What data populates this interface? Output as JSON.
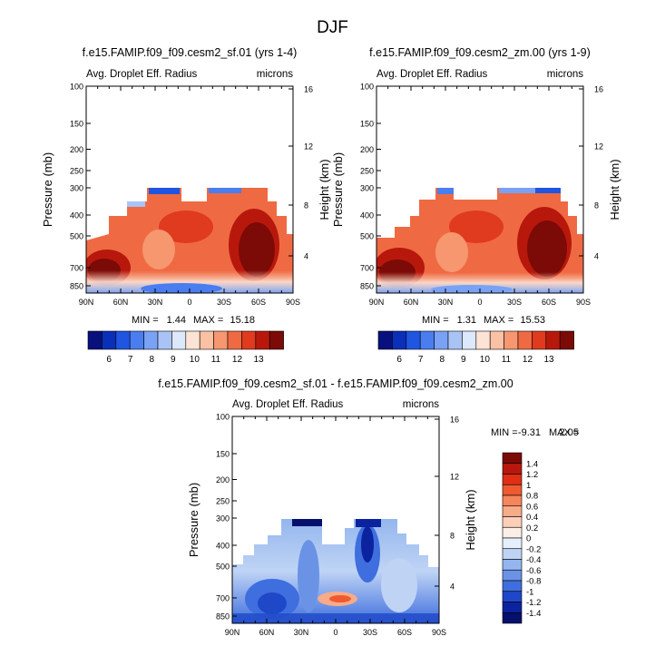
{
  "title": "DJF",
  "chart_data": [
    {
      "type": "heatmap",
      "id": "p1",
      "title": "f.e15.FAMIP.f09_f09.cesm2_sf.01 (yrs 1-4)",
      "subtitle_left": "Avg. Droplet Eff. Radius",
      "subtitle_right": "microns",
      "ylabel": "Pressure (mb)",
      "ylabel_right": "Height (km)",
      "x_ticks": [
        "90N",
        "60N",
        "30N",
        "0",
        "30S",
        "60S",
        "90S"
      ],
      "y_ticks": [
        "100",
        "150",
        "200",
        "250",
        "300",
        "400",
        "500",
        "700",
        "850"
      ],
      "y2_ticks": [
        "16",
        "12",
        "8",
        "4"
      ],
      "min_label": "MIN =",
      "min_value": "1.44",
      "max_label": "MAX =",
      "max_value": "15.18",
      "colorbar_labels": [
        "6",
        "7",
        "8",
        "9",
        "10",
        "11",
        "12",
        "13"
      ]
    },
    {
      "type": "heatmap",
      "id": "p2",
      "title": "f.e15.FAMIP.f09_f09.cesm2_zm.00 (yrs 1-9)",
      "subtitle_left": "Avg. Droplet Eff. Radius",
      "subtitle_right": "microns",
      "ylabel": "Pressure (mb)",
      "ylabel_right": "Height (km)",
      "x_ticks": [
        "90N",
        "60N",
        "30N",
        "0",
        "30S",
        "60S",
        "90S"
      ],
      "y_ticks": [
        "100",
        "150",
        "200",
        "250",
        "300",
        "400",
        "500",
        "700",
        "850"
      ],
      "y2_ticks": [
        "16",
        "12",
        "8",
        "4"
      ],
      "min_label": "MIN =",
      "min_value": "1.31",
      "max_label": "MAX =",
      "max_value": "15.53",
      "colorbar_labels": [
        "6",
        "7",
        "8",
        "9",
        "10",
        "11",
        "12",
        "13"
      ]
    },
    {
      "type": "heatmap",
      "id": "p3",
      "title": "f.e15.FAMIP.f09_f09.cesm2_sf.01 - f.e15.FAMIP.f09_f09.cesm2_zm.00",
      "subtitle_left": "Avg. Droplet Eff. Radius",
      "subtitle_right": "microns",
      "ylabel": "Pressure (mb)",
      "ylabel_right": "Height (km)",
      "x_ticks": [
        "90N",
        "60N",
        "30N",
        "0",
        "30S",
        "60S",
        "90S"
      ],
      "y_ticks": [
        "100",
        "150",
        "200",
        "250",
        "300",
        "400",
        "500",
        "700",
        "850"
      ],
      "y2_ticks": [
        "16",
        "12",
        "8",
        "4"
      ],
      "min_label": "MIN =",
      "min_value": "-9.31",
      "max_label": "MAX =",
      "max_value": "2.05",
      "colorbar_labels": [
        "1.4",
        "1.2",
        "1",
        "0.8",
        "0.6",
        "0.4",
        "0.2",
        "0",
        "-0.2",
        "-0.4",
        "-0.6",
        "-0.8",
        "-1",
        "-1.2",
        "-1.4"
      ]
    }
  ],
  "colors": {
    "abs_scale": [
      "#08107e",
      "#0a2fb8",
      "#1f55e0",
      "#4a7df0",
      "#7aa2f4",
      "#a9c3f5",
      "#dde8fa",
      "#fde3d4",
      "#fbc1a5",
      "#f6976f",
      "#ef6a43",
      "#e03a1f",
      "#b8180c",
      "#7c0a06"
    ],
    "diff_scale": [
      "#7c0a06",
      "#b8180c",
      "#df2f14",
      "#ef5a30",
      "#f4865c",
      "#f8ab88",
      "#fccfb8",
      "#fbeee6",
      "#e6effb",
      "#bfd4f5",
      "#94b6ee",
      "#6a93e6",
      "#3f6ede",
      "#1f48c8",
      "#0c239f",
      "#04106c"
    ]
  }
}
